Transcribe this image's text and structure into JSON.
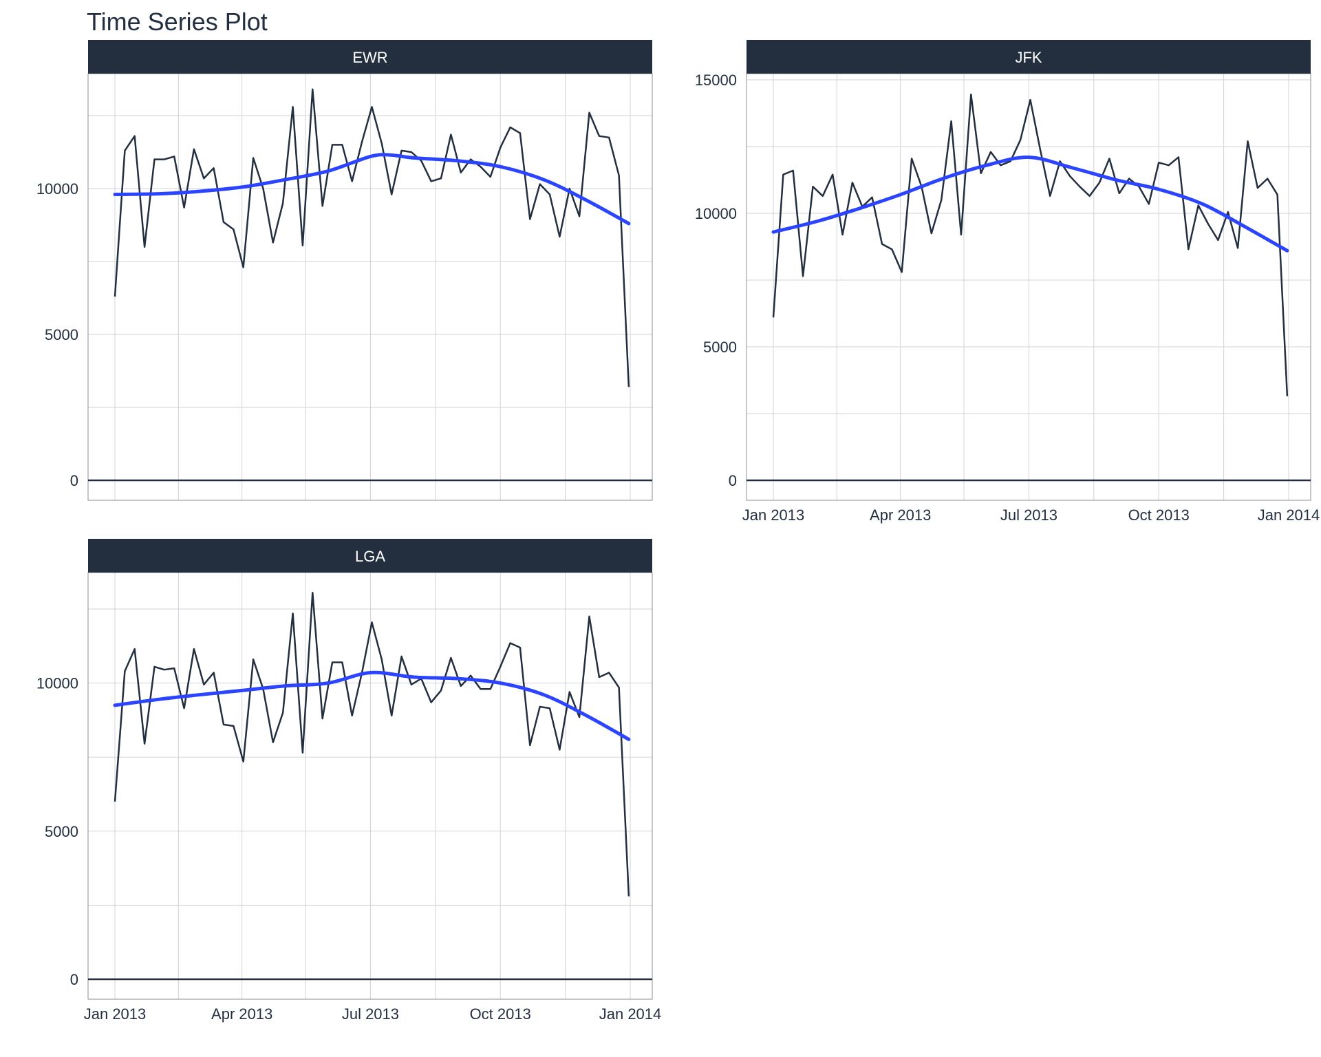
{
  "title": "Time Series Plot",
  "colors": {
    "strip": "#232f3f",
    "line": "#232f3f",
    "smooth": "#2b44ff",
    "grid": "#cfd3d8"
  },
  "chart_data": [
    {
      "type": "line",
      "facet": "EWR",
      "xlim": [
        "2013-01-01",
        "2014-01-01"
      ],
      "ylim": [
        0,
        13500
      ],
      "y_ticks": [
        0,
        5000,
        10000
      ],
      "x_tick_labels": [],
      "grid": true,
      "series": [
        {
          "values": [
            [
              "2013-01-01",
              6300
            ],
            [
              "2013-01-08",
              11300
            ],
            [
              "2013-01-15",
              11800
            ],
            [
              "2013-01-22",
              8000
            ],
            [
              "2013-01-29",
              11000
            ],
            [
              "2013-02-05",
              11000
            ],
            [
              "2013-02-12",
              11100
            ],
            [
              "2013-02-19",
              9350
            ],
            [
              "2013-02-26",
              11350
            ],
            [
              "2013-03-05",
              10350
            ],
            [
              "2013-03-12",
              10700
            ],
            [
              "2013-03-19",
              8850
            ],
            [
              "2013-03-26",
              8600
            ],
            [
              "2013-04-02",
              7300
            ],
            [
              "2013-04-09",
              11050
            ],
            [
              "2013-04-16",
              10000
            ],
            [
              "2013-04-23",
              8150
            ],
            [
              "2013-04-30",
              9500
            ],
            [
              "2013-05-07",
              12800
            ],
            [
              "2013-05-14",
              8050
            ],
            [
              "2013-05-21",
              13400
            ],
            [
              "2013-05-28",
              9400
            ],
            [
              "2013-06-04",
              11500
            ],
            [
              "2013-06-11",
              11500
            ],
            [
              "2013-06-18",
              10250
            ],
            [
              "2013-06-25",
              11600
            ],
            [
              "2013-07-02",
              12800
            ],
            [
              "2013-07-09",
              11550
            ],
            [
              "2013-07-16",
              9800
            ],
            [
              "2013-07-23",
              11300
            ],
            [
              "2013-07-30",
              11250
            ],
            [
              "2013-08-06",
              10950
            ],
            [
              "2013-08-13",
              10250
            ],
            [
              "2013-08-20",
              10350
            ],
            [
              "2013-08-27",
              11850
            ],
            [
              "2013-09-03",
              10550
            ],
            [
              "2013-09-10",
              11000
            ],
            [
              "2013-09-17",
              10750
            ],
            [
              "2013-09-24",
              10400
            ],
            [
              "2013-10-01",
              11400
            ],
            [
              "2013-10-08",
              12100
            ],
            [
              "2013-10-15",
              11900
            ],
            [
              "2013-10-22",
              8950
            ],
            [
              "2013-10-29",
              10150
            ],
            [
              "2013-11-05",
              9800
            ],
            [
              "2013-11-12",
              8350
            ],
            [
              "2013-11-19",
              10000
            ],
            [
              "2013-11-26",
              9050
            ],
            [
              "2013-12-03",
              12600
            ],
            [
              "2013-12-10",
              11800
            ],
            [
              "2013-12-17",
              11750
            ],
            [
              "2013-12-24",
              10450
            ],
            [
              "2013-12-31",
              3200
            ]
          ]
        },
        {
          "values": [
            [
              "2013-01-01",
              9800
            ],
            [
              "2013-02-01",
              9820
            ],
            [
              "2013-03-01",
              9900
            ],
            [
              "2013-04-01",
              10050
            ],
            [
              "2013-05-01",
              10300
            ],
            [
              "2013-06-01",
              10600
            ],
            [
              "2013-07-01",
              11100
            ],
            [
              "2013-07-15",
              11150
            ],
            [
              "2013-08-01",
              11050
            ],
            [
              "2013-09-01",
              10950
            ],
            [
              "2013-10-01",
              10750
            ],
            [
              "2013-11-01",
              10300
            ],
            [
              "2013-12-01",
              9600
            ],
            [
              "2013-12-31",
              8800
            ]
          ]
        }
      ]
    },
    {
      "type": "line",
      "facet": "JFK",
      "xlim": [
        "2013-01-01",
        "2014-01-01"
      ],
      "ylim": [
        0,
        15500
      ],
      "y_ticks": [
        0,
        5000,
        10000,
        15000
      ],
      "x_tick_labels": [
        "Jan 2013",
        "Apr 2013",
        "Jul 2013",
        "Oct 2013",
        "Jan 2014"
      ],
      "grid": true,
      "series": [
        {
          "values": [
            [
              "2013-01-01",
              6100
            ],
            [
              "2013-01-08",
              11450
            ],
            [
              "2013-01-15",
              11600
            ],
            [
              "2013-01-22",
              7650
            ],
            [
              "2013-01-29",
              11000
            ],
            [
              "2013-02-05",
              10650
            ],
            [
              "2013-02-12",
              11450
            ],
            [
              "2013-02-19",
              9200
            ],
            [
              "2013-02-26",
              11150
            ],
            [
              "2013-03-05",
              10250
            ],
            [
              "2013-03-12",
              10600
            ],
            [
              "2013-03-19",
              8850
            ],
            [
              "2013-03-26",
              8650
            ],
            [
              "2013-04-02",
              7800
            ],
            [
              "2013-04-09",
              12050
            ],
            [
              "2013-04-16",
              11000
            ],
            [
              "2013-04-23",
              9250
            ],
            [
              "2013-04-30",
              10500
            ],
            [
              "2013-05-07",
              13450
            ],
            [
              "2013-05-14",
              9200
            ],
            [
              "2013-05-21",
              14450
            ],
            [
              "2013-05-28",
              11500
            ],
            [
              "2013-06-04",
              12300
            ],
            [
              "2013-06-11",
              11800
            ],
            [
              "2013-06-18",
              11950
            ],
            [
              "2013-06-25",
              12750
            ],
            [
              "2013-07-02",
              14250
            ],
            [
              "2013-07-09",
              12400
            ],
            [
              "2013-07-16",
              10650
            ],
            [
              "2013-07-23",
              11950
            ],
            [
              "2013-07-30",
              11400
            ],
            [
              "2013-08-06",
              11000
            ],
            [
              "2013-08-13",
              10650
            ],
            [
              "2013-08-20",
              11150
            ],
            [
              "2013-08-27",
              12050
            ],
            [
              "2013-09-03",
              10750
            ],
            [
              "2013-09-10",
              11300
            ],
            [
              "2013-09-17",
              11000
            ],
            [
              "2013-09-24",
              10350
            ],
            [
              "2013-10-01",
              11900
            ],
            [
              "2013-10-08",
              11800
            ],
            [
              "2013-10-15",
              12100
            ],
            [
              "2013-10-22",
              8650
            ],
            [
              "2013-10-29",
              10300
            ],
            [
              "2013-11-05",
              9600
            ],
            [
              "2013-11-12",
              9000
            ],
            [
              "2013-11-19",
              10050
            ],
            [
              "2013-11-26",
              8700
            ],
            [
              "2013-12-03",
              12700
            ],
            [
              "2013-12-10",
              10950
            ],
            [
              "2013-12-17",
              11300
            ],
            [
              "2013-12-24",
              10700
            ],
            [
              "2013-12-31",
              3150
            ]
          ]
        },
        {
          "values": [
            [
              "2013-01-01",
              9300
            ],
            [
              "2013-02-01",
              9700
            ],
            [
              "2013-03-01",
              10150
            ],
            [
              "2013-04-01",
              10700
            ],
            [
              "2013-05-01",
              11300
            ],
            [
              "2013-06-01",
              11800
            ],
            [
              "2013-07-01",
              12100
            ],
            [
              "2013-08-01",
              11700
            ],
            [
              "2013-09-01",
              11250
            ],
            [
              "2013-10-01",
              10900
            ],
            [
              "2013-11-01",
              10350
            ],
            [
              "2013-12-01",
              9500
            ],
            [
              "2013-12-31",
              8600
            ]
          ]
        }
      ]
    },
    {
      "type": "line",
      "facet": "LGA",
      "xlim": [
        "2013-01-01",
        "2014-01-01"
      ],
      "ylim": [
        0,
        13500
      ],
      "y_ticks": [
        0,
        5000,
        10000
      ],
      "x_tick_labels": [
        "Jan 2013",
        "Apr 2013",
        "Jul 2013",
        "Oct 2013",
        "Jan 2014"
      ],
      "grid": true,
      "series": [
        {
          "values": [
            [
              "2013-01-01",
              6000
            ],
            [
              "2013-01-08",
              10400
            ],
            [
              "2013-01-15",
              11150
            ],
            [
              "2013-01-22",
              7950
            ],
            [
              "2013-01-29",
              10550
            ],
            [
              "2013-02-05",
              10450
            ],
            [
              "2013-02-12",
              10500
            ],
            [
              "2013-02-19",
              9150
            ],
            [
              "2013-02-26",
              11150
            ],
            [
              "2013-03-05",
              9950
            ],
            [
              "2013-03-12",
              10350
            ],
            [
              "2013-03-19",
              8600
            ],
            [
              "2013-03-26",
              8550
            ],
            [
              "2013-04-02",
              7350
            ],
            [
              "2013-04-09",
              10800
            ],
            [
              "2013-04-16",
              9800
            ],
            [
              "2013-04-23",
              8000
            ],
            [
              "2013-04-30",
              9000
            ],
            [
              "2013-05-07",
              12350
            ],
            [
              "2013-05-14",
              7650
            ],
            [
              "2013-05-21",
              13050
            ],
            [
              "2013-05-28",
              8800
            ],
            [
              "2013-06-04",
              10700
            ],
            [
              "2013-06-11",
              10700
            ],
            [
              "2013-06-18",
              8900
            ],
            [
              "2013-06-25",
              10350
            ],
            [
              "2013-07-02",
              12050
            ],
            [
              "2013-07-09",
              10800
            ],
            [
              "2013-07-16",
              8900
            ],
            [
              "2013-07-23",
              10900
            ],
            [
              "2013-07-30",
              9950
            ],
            [
              "2013-08-06",
              10150
            ],
            [
              "2013-08-13",
              9350
            ],
            [
              "2013-08-20",
              9750
            ],
            [
              "2013-08-27",
              10850
            ],
            [
              "2013-09-03",
              9900
            ],
            [
              "2013-09-10",
              10250
            ],
            [
              "2013-09-17",
              9800
            ],
            [
              "2013-09-24",
              9800
            ],
            [
              "2013-10-01",
              10550
            ],
            [
              "2013-10-08",
              11350
            ],
            [
              "2013-10-15",
              11200
            ],
            [
              "2013-10-22",
              7900
            ],
            [
              "2013-10-29",
              9200
            ],
            [
              "2013-11-05",
              9150
            ],
            [
              "2013-11-12",
              7750
            ],
            [
              "2013-11-19",
              9700
            ],
            [
              "2013-11-26",
              8850
            ],
            [
              "2013-12-03",
              12250
            ],
            [
              "2013-12-10",
              10200
            ],
            [
              "2013-12-17",
              10350
            ],
            [
              "2013-12-24",
              9850
            ],
            [
              "2013-12-31",
              2800
            ]
          ]
        },
        {
          "values": [
            [
              "2013-01-01",
              9250
            ],
            [
              "2013-02-01",
              9450
            ],
            [
              "2013-03-01",
              9600
            ],
            [
              "2013-04-01",
              9750
            ],
            [
              "2013-05-01",
              9900
            ],
            [
              "2013-06-01",
              10000
            ],
            [
              "2013-07-01",
              10350
            ],
            [
              "2013-08-01",
              10200
            ],
            [
              "2013-09-01",
              10150
            ],
            [
              "2013-10-01",
              10000
            ],
            [
              "2013-11-01",
              9600
            ],
            [
              "2013-12-01",
              8900
            ],
            [
              "2013-12-31",
              8100
            ]
          ]
        }
      ]
    }
  ]
}
